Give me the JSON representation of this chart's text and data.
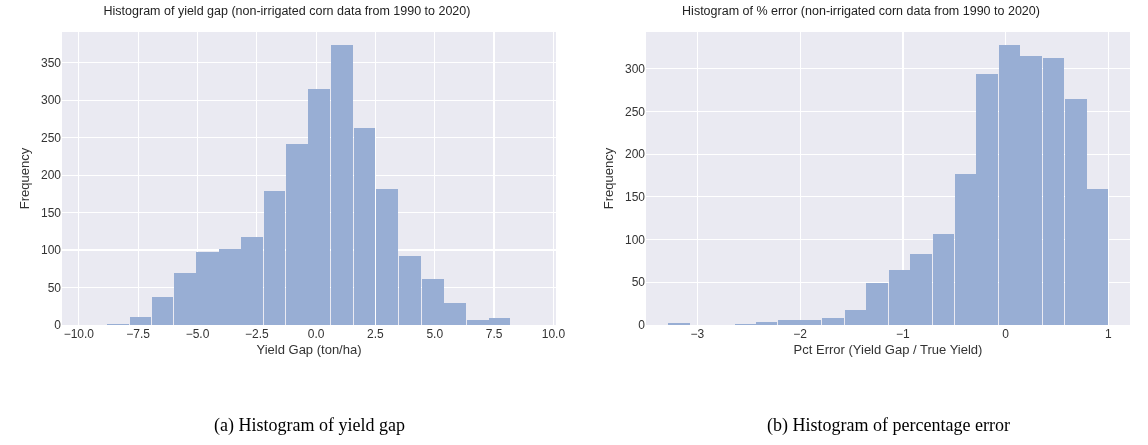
{
  "chart_data": [
    {
      "type": "histogram",
      "title": "Histogram of yield gap (non-irrigated corn data from 1990 to 2020)",
      "xlabel": "Yield Gap (ton/ha)",
      "ylabel": "Frequency",
      "annotations": [
        "(a) Histogram of yield gap"
      ],
      "color": "#98aed4",
      "bins": [
        -8.82,
        -7.86,
        -6.95,
        -6.0,
        -5.06,
        -4.1,
        -3.16,
        -2.23,
        -1.28,
        -0.34,
        0.62,
        1.58,
        2.51,
        3.47,
        4.45,
        5.39,
        6.33,
        7.28,
        8.19
      ],
      "values": [
        1,
        11,
        38,
        69,
        97,
        101,
        117,
        179,
        241,
        315,
        374,
        263,
        181,
        92,
        61,
        30,
        7,
        9
      ],
      "xlim": [
        -10.71,
        10.11
      ],
      "xticks": [
        {
          "value": -10,
          "label": "−10.0"
        },
        {
          "value": -7.5,
          "label": "−7.5"
        },
        {
          "value": -5,
          "label": "−5.0"
        },
        {
          "value": -2.5,
          "label": "−2.5"
        },
        {
          "value": 0,
          "label": "0.0"
        },
        {
          "value": 2.5,
          "label": "2.5"
        },
        {
          "value": 5,
          "label": "5.0"
        },
        {
          "value": 7.5,
          "label": "7.5"
        },
        {
          "value": 10,
          "label": "10.0"
        }
      ],
      "ylim": [
        0,
        391
      ],
      "yticks": [
        0,
        50,
        100,
        150,
        200,
        250,
        300,
        350
      ],
      "grid": true
    },
    {
      "type": "histogram",
      "title": "Histogram of % error (non-irrigated corn data from 1990 to 2020)",
      "xlabel": "Pct Error (Yield Gap / True Yield)",
      "ylabel": "Frequency",
      "annotations": [
        "(b) Histogram of percentage error"
      ],
      "color": "#98aed4",
      "bins": [
        -3.29,
        -3.07,
        -2.64,
        -2.43,
        -2.22,
        -2.0,
        -1.79,
        -1.57,
        -1.36,
        -1.14,
        -0.93,
        -0.71,
        -0.5,
        -0.29,
        -0.07,
        0.14,
        0.36,
        0.57,
        0.79,
        1.0
      ],
      "values": [
        2,
        0,
        1,
        3,
        6,
        6,
        8,
        18,
        49,
        64,
        83,
        106,
        177,
        294,
        328,
        315,
        312,
        265,
        159
      ],
      "xlim": [
        -3.5,
        1.21
      ],
      "xticks": [
        {
          "value": -3,
          "label": "−3"
        },
        {
          "value": -2,
          "label": "−2"
        },
        {
          "value": -1,
          "label": "−1"
        },
        0,
        1
      ],
      "ylim": [
        0,
        343
      ],
      "yticks": [
        0,
        50,
        100,
        150,
        200,
        250,
        300
      ],
      "grid": true
    }
  ]
}
